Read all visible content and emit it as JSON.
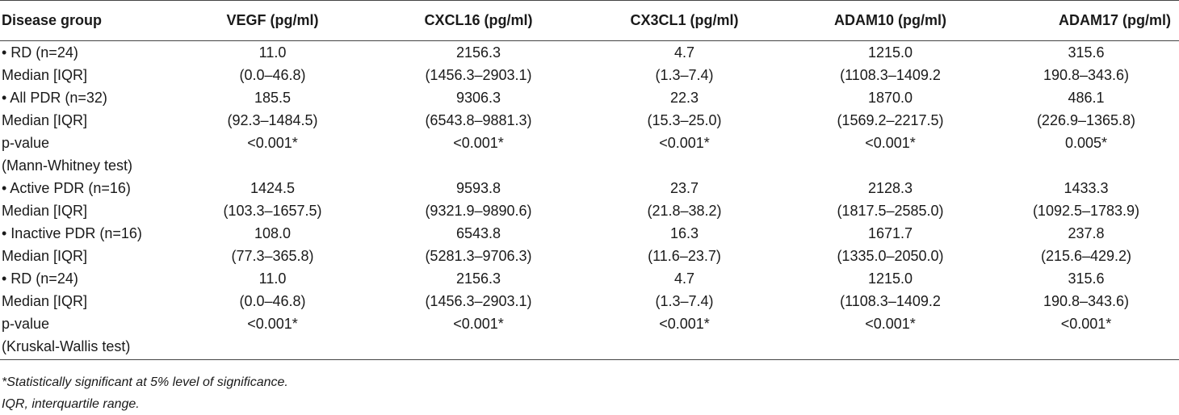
{
  "table": {
    "headers": [
      "Disease group",
      "VEGF (pg/ml)",
      "CXCL16 (pg/ml)",
      "CX3CL1 (pg/ml)",
      "ADAM10 (pg/ml)",
      "ADAM17 (pg/ml)"
    ],
    "rows": [
      [
        "• RD (n=24)",
        "11.0",
        "2156.3",
        "4.7",
        "1215.0",
        "315.6"
      ],
      [
        "Median [IQR]",
        "(0.0–46.8)",
        "(1456.3–2903.1)",
        "(1.3–7.4)",
        "(1108.3–1409.2",
        "190.8–343.6)"
      ],
      [
        "• All PDR (n=32)",
        "185.5",
        "9306.3",
        "22.3",
        "1870.0",
        "486.1"
      ],
      [
        "Median [IQR]",
        "(92.3–1484.5)",
        "(6543.8–9881.3)",
        "(15.3–25.0)",
        "(1569.2–2217.5)",
        "(226.9–1365.8)"
      ],
      [
        " p-value",
        "<0.001*",
        "<0.001*",
        "<0.001*",
        "<0.001*",
        "0.005*"
      ],
      [
        "(Mann-Whitney test)",
        "",
        "",
        "",
        "",
        ""
      ],
      [
        "• Active PDR (n=16)",
        "1424.5",
        "9593.8",
        "23.7",
        "2128.3",
        "1433.3"
      ],
      [
        "Median [IQR]",
        "(103.3–1657.5)",
        "(9321.9–9890.6)",
        "(21.8–38.2)",
        "(1817.5–2585.0)",
        "(1092.5–1783.9)"
      ],
      [
        "• Inactive PDR (n=16)",
        "108.0",
        "6543.8",
        "16.3",
        "1671.7",
        "237.8"
      ],
      [
        "Median [IQR]",
        "(77.3–365.8)",
        "(5281.3–9706.3)",
        "(11.6–23.7)",
        "(1335.0–2050.0)",
        "(215.6–429.2)"
      ],
      [
        "• RD (n=24)",
        "11.0",
        "2156.3",
        "4.7",
        "1215.0",
        "315.6"
      ],
      [
        "Median [IQR]",
        "(0.0–46.8)",
        "(1456.3–2903.1)",
        "(1.3–7.4)",
        "(1108.3–1409.2",
        "190.8–343.6)"
      ],
      [
        " p-value",
        "<0.001*",
        "<0.001*",
        "<0.001*",
        "<0.001*",
        "<0.001*"
      ],
      [
        "(Kruskal-Wallis test)",
        "",
        "",
        "",
        "",
        ""
      ]
    ]
  },
  "footnotes": [
    "*Statistically significant at 5% level of significance.",
    "IQR, interquartile range."
  ]
}
